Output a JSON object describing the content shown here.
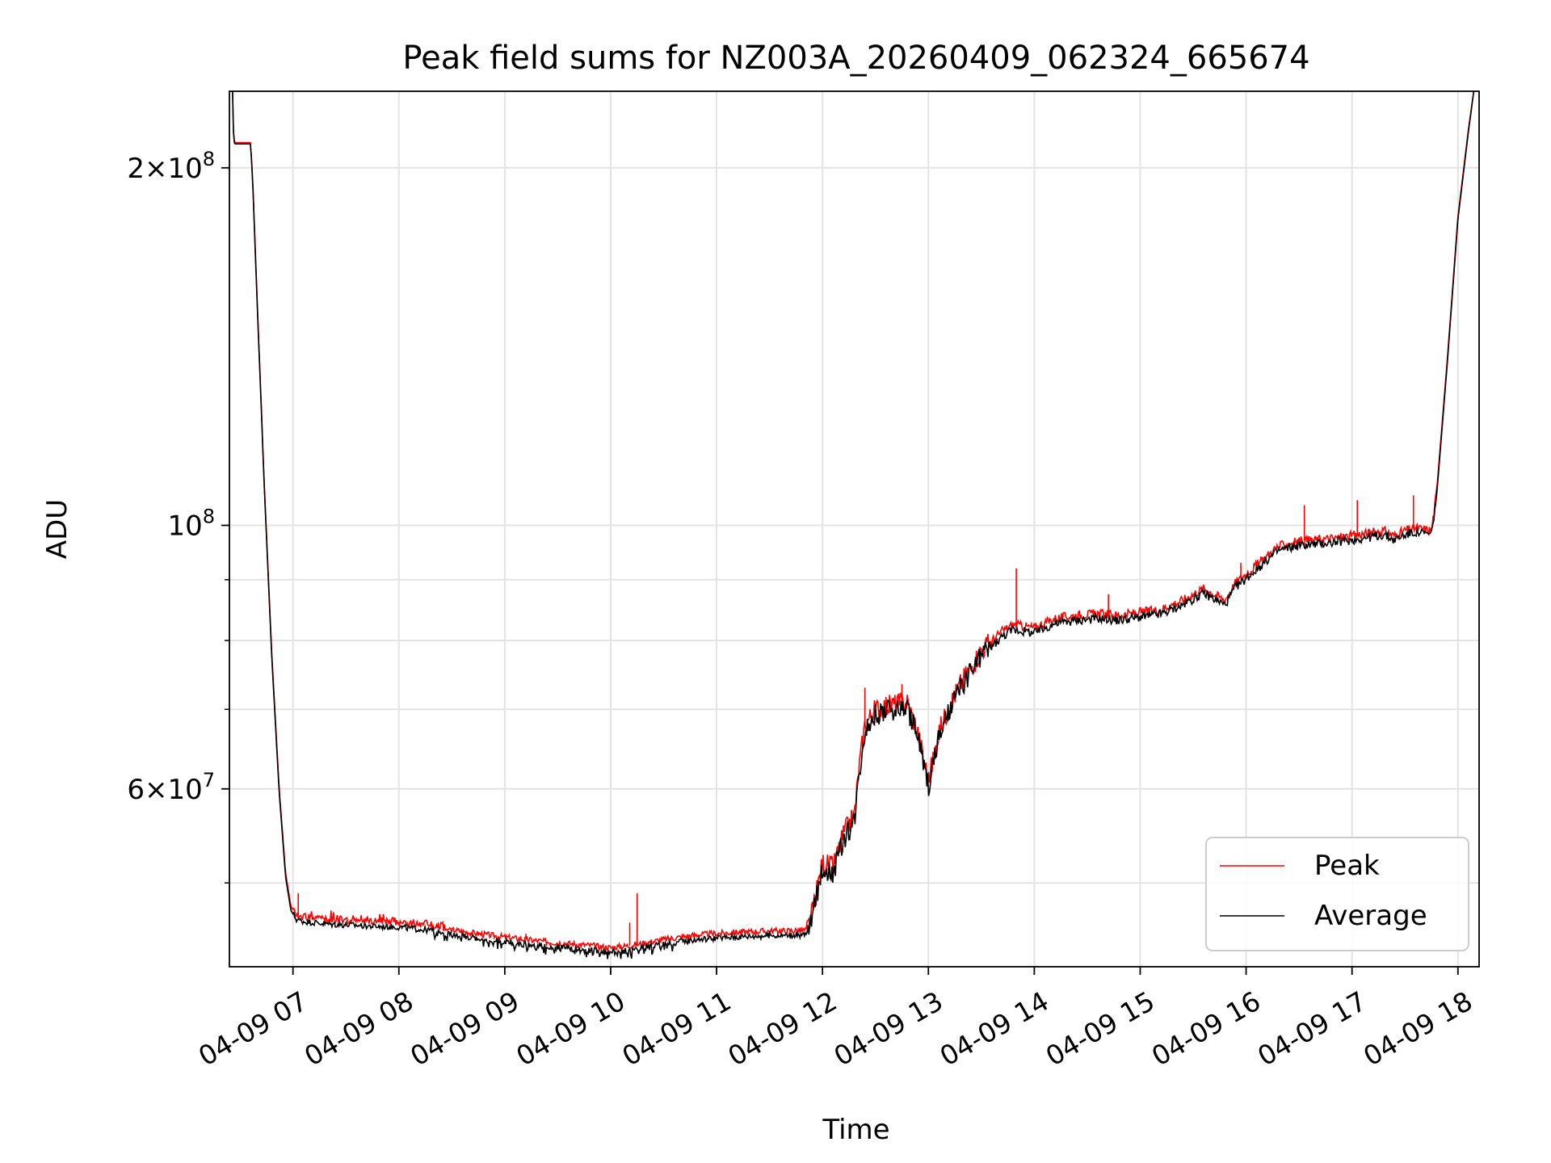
{
  "chart_data": {
    "type": "line",
    "title": "Peak field sums for NZ003A_20260409_062324_665674",
    "xlabel": "Time",
    "ylabel": "ADU",
    "yscale": "log",
    "ylim": [
      42500000,
      232000000
    ],
    "xlim_hours": [
      6.4,
      18.2
    ],
    "grid": true,
    "legend_position": "lower-right",
    "x_ticks": [
      {
        "hour": 7,
        "label": "04-09 07"
      },
      {
        "hour": 8,
        "label": "04-09 08"
      },
      {
        "hour": 9,
        "label": "04-09 09"
      },
      {
        "hour": 10,
        "label": "04-09 10"
      },
      {
        "hour": 11,
        "label": "04-09 11"
      },
      {
        "hour": 12,
        "label": "04-09 12"
      },
      {
        "hour": 13,
        "label": "04-09 13"
      },
      {
        "hour": 14,
        "label": "04-09 14"
      },
      {
        "hour": 15,
        "label": "04-09 15"
      },
      {
        "hour": 16,
        "label": "04-09 16"
      },
      {
        "hour": 17,
        "label": "04-09 17"
      },
      {
        "hour": 18,
        "label": "04-09 18"
      }
    ],
    "y_major_ticks": [
      {
        "value": 60000000,
        "base": "6",
        "exp": "7",
        "kind": "mult"
      },
      {
        "value": 100000000,
        "base": "10",
        "exp": "8",
        "kind": "pow"
      },
      {
        "value": 200000000,
        "base": "2",
        "exp": "8",
        "kind": "mult"
      }
    ],
    "y_minor_ticks": [
      50000000,
      70000000,
      80000000,
      90000000
    ],
    "series": [
      {
        "name": "Peak",
        "color": "#ff0000",
        "x_hours": [
          6.43,
          6.44,
          6.45,
          6.6,
          6.62,
          6.67,
          6.73,
          6.8,
          6.87,
          6.93,
          6.98,
          7.03,
          7.1,
          7.2,
          7.35,
          7.6,
          7.8,
          8.0,
          8.3,
          8.6,
          9.0,
          9.4,
          9.8,
          10.0,
          10.2,
          10.5,
          10.8,
          11.2,
          11.5,
          11.85,
          11.9,
          12.0,
          12.1,
          12.2,
          12.3,
          12.35,
          12.4,
          12.5,
          12.6,
          12.8,
          12.9,
          13.0,
          13.1,
          13.2,
          13.3,
          13.5,
          13.7,
          13.8,
          14.0,
          14.2,
          14.4,
          14.6,
          14.8,
          15.0,
          15.2,
          15.4,
          15.6,
          15.8,
          15.9,
          16.0,
          16.3,
          16.5,
          16.8,
          17.0,
          17.3,
          17.4,
          17.5,
          17.6,
          17.75,
          17.8,
          17.9,
          18.0,
          18.1,
          18.15
        ],
        "values": [
          232000000,
          212000000,
          210000000,
          210000000,
          195000000,
          148000000,
          108000000,
          78000000,
          60000000,
          51000000,
          47800000,
          47000000,
          46800000,
          46700000,
          46550000,
          46450000,
          46350000,
          46300000,
          46000000,
          45500000,
          45000000,
          44600000,
          44300000,
          44100000,
          44300000,
          44800000,
          45200000,
          45450000,
          45550000,
          45600000,
          47000000,
          52000000,
          51500000,
          55000000,
          57000000,
          63000000,
          68000000,
          70000000,
          70500000,
          71000000,
          67000000,
          61000000,
          67000000,
          70500000,
          73500000,
          78500000,
          81500000,
          82500000,
          82000000,
          83500000,
          84000000,
          84300000,
          84000000,
          84500000,
          85000000,
          86500000,
          88500000,
          86500000,
          89500000,
          91000000,
          96000000,
          97000000,
          97500000,
          98000000,
          99000000,
          98000000,
          99000000,
          99500000,
          99000000,
          107000000,
          138000000,
          182000000,
          216000000,
          232000000
        ],
        "spikes": [
          {
            "hour": 7.05,
            "value": 49000000
          },
          {
            "hour": 9.2,
            "value": 45300000
          },
          {
            "hour": 10.18,
            "value": 46300000
          },
          {
            "hour": 10.25,
            "value": 49000000
          },
          {
            "hour": 12.4,
            "value": 73000000
          },
          {
            "hour": 12.75,
            "value": 73500000
          },
          {
            "hour": 13.83,
            "value": 92000000
          },
          {
            "hour": 14.7,
            "value": 87500000
          },
          {
            "hour": 15.5,
            "value": 87000000
          },
          {
            "hour": 15.95,
            "value": 93000000
          },
          {
            "hour": 16.55,
            "value": 104000000
          },
          {
            "hour": 17.05,
            "value": 105000000
          },
          {
            "hour": 17.58,
            "value": 106000000
          }
        ]
      },
      {
        "name": "Average",
        "color": "#000000",
        "x_hours": [
          6.43,
          6.44,
          6.45,
          6.6,
          6.62,
          6.67,
          6.73,
          6.8,
          6.87,
          6.93,
          6.98,
          7.03,
          7.1,
          7.2,
          7.35,
          7.6,
          7.8,
          8.0,
          8.3,
          8.6,
          9.0,
          9.4,
          9.8,
          10.0,
          10.2,
          10.5,
          10.8,
          11.2,
          11.5,
          11.85,
          11.9,
          12.0,
          12.1,
          12.2,
          12.3,
          12.35,
          12.4,
          12.5,
          12.6,
          12.8,
          12.9,
          13.0,
          13.1,
          13.2,
          13.3,
          13.5,
          13.7,
          13.8,
          14.0,
          14.2,
          14.4,
          14.6,
          14.8,
          15.0,
          15.2,
          15.4,
          15.6,
          15.8,
          15.9,
          16.0,
          16.3,
          16.5,
          16.8,
          17.0,
          17.3,
          17.4,
          17.5,
          17.6,
          17.75,
          17.8,
          17.9,
          18.0,
          18.1,
          18.15
        ],
        "values": [
          232000000,
          211000000,
          209500000,
          209500000,
          194000000,
          147000000,
          107500000,
          77500000,
          59600000,
          50600000,
          47400000,
          46600000,
          46400000,
          46300000,
          46150000,
          46050000,
          45950000,
          45900000,
          45600000,
          45100000,
          44600000,
          44200000,
          43900000,
          43700000,
          43900000,
          44400000,
          44800000,
          45050000,
          45150000,
          45200000,
          46600000,
          51500000,
          51000000,
          54400000,
          56400000,
          62300000,
          67300000,
          69300000,
          69800000,
          70300000,
          66300000,
          60400000,
          66300000,
          69800000,
          72800000,
          77700000,
          80700000,
          81700000,
          81200000,
          82700000,
          83200000,
          83500000,
          83200000,
          83700000,
          84200000,
          85700000,
          87700000,
          85700000,
          88700000,
          90200000,
          95200000,
          96200000,
          96700000,
          97200000,
          98200000,
          97200000,
          98200000,
          98700000,
          98200000,
          106000000,
          137000000,
          181000000,
          215000000,
          232000000
        ]
      }
    ]
  }
}
